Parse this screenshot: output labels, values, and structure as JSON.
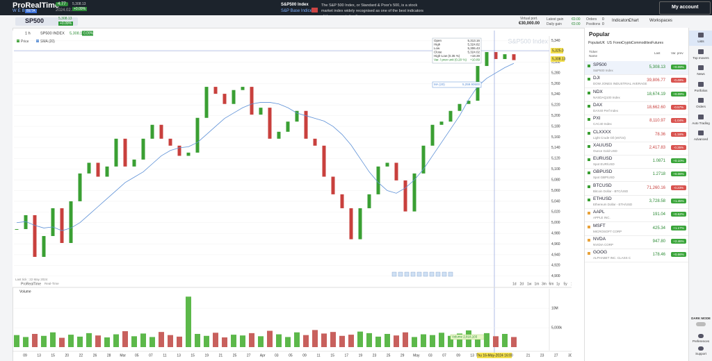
{
  "header": {
    "logo": "ProRealTime",
    "logo_sub": "WEB",
    "beta": "BETA",
    "badge": "4.77",
    "date": "2024.02.29",
    "quote_price": "5,308.13",
    "quote_change": "+0.09%",
    "instrument": "S&P500 Index",
    "instrument_sub": "S&P Base Indices",
    "description": "The S&P 500 Index, or Standard & Poor's 500, is a stock market index widely recognised as one of the best indicators of the economic healt...",
    "account": "My account"
  },
  "toolbar": {
    "search": "SP500",
    "price": "5,308.13",
    "change": "+0.09%",
    "virtual_port_label": "Virtual port.",
    "virtual_port": "€30,000.00",
    "latest_gain_label": "Latest gain",
    "latest_gain": "€0.00",
    "daily_gain_label": "Daily gain",
    "daily_gain": "€0.00",
    "orders_label": "Orders",
    "orders": "0",
    "positions_label": "Positions",
    "positions": "0",
    "buttons": [
      "Indicators",
      "Chart",
      "Workspaces"
    ]
  },
  "chart_data": {
    "type": "candlestick",
    "timeframe": "1 h",
    "instrument": "SP500 INDEX",
    "instrument_price": "5,308.13",
    "instrument_change": "0.09%",
    "watermark": "S&P500 Index",
    "series": [
      {
        "name": "Price",
        "up_color": "#3a9f33",
        "down_color": "#c8403d",
        "values": [
          4988,
          5014,
          4936,
          4975,
          5027,
          4962,
          5040,
          5092,
          5112,
          5086,
          5105,
          5157,
          5105,
          5118,
          5157,
          5183,
          5157,
          5144,
          5125,
          5131,
          5196,
          5254,
          5241,
          5222,
          5248,
          5254,
          5202,
          5215,
          5157,
          5170,
          5189,
          5209,
          5157,
          5144,
          5086,
          5053,
          5027,
          4969,
          5027,
          5053,
          5105,
          5112,
          5079,
          5021,
          5092,
          5144,
          5183,
          5189,
          5209,
          5222,
          5228,
          5293,
          5319,
          5306,
          5315,
          5304
        ]
      },
      {
        "name": "SMA (20)",
        "color": "#5b8fd6",
        "values": [
          5000,
          5002,
          4995,
          4990,
          4992,
          4985,
          4990,
          5000,
          5015,
          5030,
          5045,
          5060,
          5075,
          5085,
          5095,
          5110,
          5125,
          5135,
          5140,
          5142,
          5150,
          5165,
          5180,
          5195,
          5205,
          5215,
          5222,
          5225,
          5225,
          5222,
          5215,
          5205,
          5200,
          5195,
          5190,
          5180,
          5165,
          5145,
          5120,
          5095,
          5075,
          5060,
          5055,
          5065,
          5080,
          5100,
          5125,
          5150,
          5175,
          5200,
          5230,
          5255,
          5270,
          5280,
          5290,
          5298
        ]
      }
    ],
    "ylim": [
      4888,
      5345
    ],
    "yticks": [
      {
        "value": 4900,
        "label": "4,900"
      },
      {
        "value": 4920,
        "label": "4,920"
      },
      {
        "value": 4940,
        "label": "4,940"
      },
      {
        "value": 4960,
        "label": "4,960"
      },
      {
        "value": 4980,
        "label": "4,980"
      },
      {
        "value": 5000,
        "label": "5,000"
      },
      {
        "value": 5020,
        "label": "5,020"
      },
      {
        "value": 5040,
        "label": "5,040"
      },
      {
        "value": 5060,
        "label": "5,060"
      },
      {
        "value": 5080,
        "label": "5,080"
      },
      {
        "value": 5100,
        "label": "5,100"
      },
      {
        "value": 5120,
        "label": "5,120"
      },
      {
        "value": 5140,
        "label": "5,140"
      },
      {
        "value": 5160,
        "label": "5,160"
      },
      {
        "value": 5180,
        "label": "5,180"
      },
      {
        "value": 5200,
        "label": "5,200"
      },
      {
        "value": 5220,
        "label": "5,220"
      },
      {
        "value": 5240,
        "label": "5,240"
      },
      {
        "value": 5260,
        "label": "5,260"
      },
      {
        "value": 5280,
        "label": "5,280"
      },
      {
        "value": 5300,
        "label": "5,300"
      },
      {
        "value": 5320,
        "label": "5,320"
      },
      {
        "value": 5340,
        "label": "5,340"
      }
    ],
    "price_labels": {
      "cursor": "5,325.0",
      "last": "5,308.13"
    },
    "ohlc_box": [
      [
        "Open",
        "5,313.16"
      ],
      [
        "High",
        "5,324.82"
      ],
      [
        "Low",
        "5,306.43"
      ],
      [
        "Close",
        "5,324.02"
      ],
      [
        "High-Low (0.35 %)",
        "+18.39"
      ],
      [
        "Var. / prev unit (0.20 %)",
        "+10.89"
      ]
    ],
    "ma_box": {
      "label": "MA (20)",
      "value": "5,259.90600"
    },
    "last_tick": "Last tick : 22 May 2024",
    "brand": "ProRealTime",
    "realtime": "Real-Time",
    "periods": [
      "1d",
      "2d",
      "1w",
      "1m",
      "3m",
      "6m",
      "1y",
      "5y",
      "10y"
    ],
    "volume": {
      "name": "Volume",
      "values": [
        3100000,
        2600000,
        3400000,
        2900000,
        3800000,
        2400000,
        3200000,
        2700000,
        3600000,
        3000000,
        2500000,
        3300000,
        4100000,
        2800000,
        3500000,
        2600000,
        3900000,
        3100000,
        2700000,
        13000000,
        3400000,
        2900000,
        3700000,
        2500000,
        3200000,
        3000000,
        3600000,
        2800000,
        4200000,
        3300000,
        2600000,
        3800000,
        3100000,
        4400000,
        3500000,
        3900000,
        2900000,
        3200000,
        4000000,
        3600000,
        2700000,
        3400000,
        3000000,
        3800000,
        2600000,
        3300000,
        3100000,
        3700000,
        2900000,
        3500000,
        4300000,
        3200000,
        3600000,
        2800000,
        3400000,
        2600000
      ],
      "ylim": [
        0,
        14300000
      ],
      "yticks": [
        {
          "value": 5000000,
          "label": "5,000k"
        },
        {
          "value": 10000000,
          "label": "10M"
        }
      ],
      "last_label": "Volume 2,818,103"
    },
    "date_labels": [
      "09",
      "13",
      "15",
      "20",
      "22",
      "26",
      "28",
      "Mar",
      "05",
      "07",
      "11",
      "13",
      "15",
      "19",
      "21",
      "25",
      "27",
      "Apr",
      "03",
      "05",
      "09",
      "11",
      "15",
      "17",
      "19",
      "23",
      "25",
      "29",
      "May",
      "03",
      "07",
      "09",
      "13",
      "15",
      null,
      null,
      "21",
      "23",
      "27",
      "30"
    ],
    "cursor_date": "Thu 16-May-2024 16:00"
  },
  "watchlist": {
    "title": "Popular",
    "tabs": [
      "Popular",
      "UK",
      "US",
      "Forex",
      "Crypto",
      "Commodities",
      "Futures"
    ],
    "columns": [
      "Ticker",
      "Name",
      "Last",
      "Var. prev"
    ],
    "rows": [
      [
        "SP500",
        "S&P500 Index",
        "5,308.13",
        "+0.09%"
      ],
      [
        "DJI",
        "DOW JONES INDUSTRIAL AVERAGE",
        "39,806.77",
        "-0.49%"
      ],
      [
        "NDX",
        "NASDAQ100 Index",
        "18,674.19",
        "+0.09%"
      ],
      [
        "DAX",
        "DAX40 Perf Index",
        "18,662.60",
        "-0.57%"
      ],
      [
        "PXI",
        "CAC40 Index",
        "8,110.97",
        "-1.04%"
      ],
      [
        "CLXXXX",
        "Light Crude Oil (e8724)",
        "78.36",
        "-1.16%"
      ],
      [
        "XAUUSD",
        "Ounce Gold USD",
        "2,417.83",
        "-0.35%"
      ],
      [
        "EURUSD",
        "Spot EUR/USD",
        "1.0871",
        "+0.10%"
      ],
      [
        "GBPUSD",
        "Spot GBP/USD",
        "1.2718",
        "+0.06%"
      ],
      [
        "BTCUSD",
        "Bitcoin Dollar - BTC/USD",
        "71,260.16",
        "-0.23%"
      ],
      [
        "ETHUSD",
        "Ethereum Dollar - ETH/USD",
        "3,728.58",
        "+1.45%"
      ],
      [
        "AAPL",
        "APPLE INC.",
        "191.04",
        "+0.62%"
      ],
      [
        "MSFT",
        "MICROSOFT CORP",
        "425.34",
        "+1.17%"
      ],
      [
        "NVDA",
        "NVIDIA CORP",
        "947.80",
        "+2.46%"
      ],
      [
        "GOOG",
        "ALPHABET INC. CLASS C",
        "178.46",
        "+0.66%"
      ]
    ]
  },
  "sidebar": {
    "items": [
      "Lists",
      "Top movers",
      "News",
      "Portfolios",
      "Orders",
      "Auto Trading",
      "Advanced"
    ],
    "dark_mode": "DARK MODE",
    "bottom": [
      "Preferences",
      "Support"
    ]
  }
}
